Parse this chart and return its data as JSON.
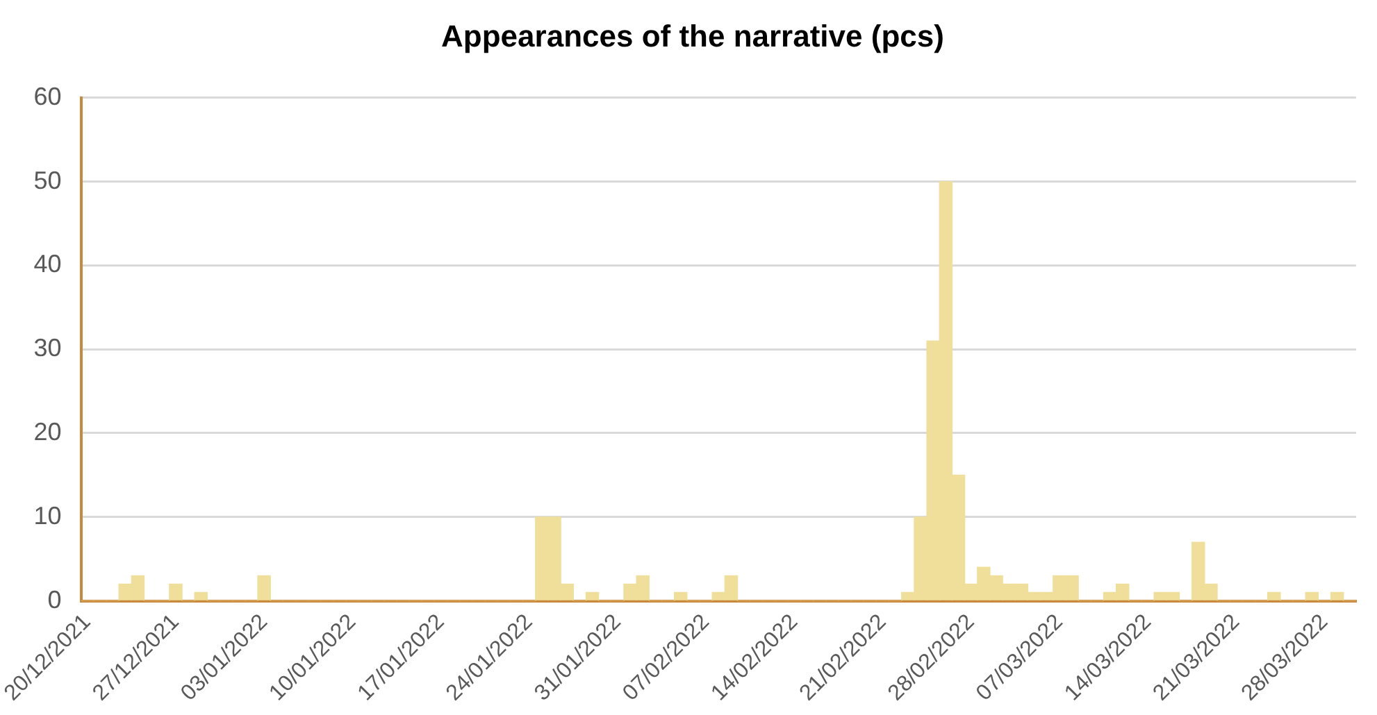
{
  "chart_data": {
    "type": "bar",
    "title": "Appearances of the narrative (pcs)",
    "categories": [
      "20/12/2021",
      null,
      null,
      null,
      null,
      null,
      null,
      "27/12/2021",
      null,
      null,
      null,
      null,
      null,
      null,
      "03/01/2022",
      null,
      null,
      null,
      null,
      null,
      null,
      "10/01/2022",
      null,
      null,
      null,
      null,
      null,
      null,
      "17/01/2022",
      null,
      null,
      null,
      null,
      null,
      null,
      "24/01/2022",
      null,
      null,
      null,
      null,
      null,
      null,
      "31/01/2022",
      null,
      null,
      null,
      null,
      null,
      null,
      "07/02/2022",
      null,
      null,
      null,
      null,
      null,
      null,
      "14/02/2022",
      null,
      null,
      null,
      null,
      null,
      null,
      "21/02/2022",
      null,
      null,
      null,
      null,
      null,
      null,
      "28/02/2022",
      null,
      null,
      null,
      null,
      null,
      null,
      "07/03/2022",
      null,
      null,
      null,
      null,
      null,
      null,
      "14/03/2022",
      null,
      null,
      null,
      null,
      null,
      null,
      "21/03/2022",
      null,
      null,
      null,
      null,
      null,
      null,
      "28/03/2022",
      null,
      null
    ],
    "values": [
      0,
      0,
      0,
      2,
      3,
      0,
      0,
      2,
      0,
      1,
      0,
      0,
      0,
      0,
      3,
      0,
      0,
      0,
      0,
      0,
      0,
      0,
      0,
      0,
      0,
      0,
      0,
      0,
      0,
      0,
      0,
      0,
      0,
      0,
      0,
      0,
      10,
      10,
      2,
      0,
      1,
      0,
      0,
      2,
      3,
      0,
      0,
      1,
      0,
      0,
      1,
      3,
      0,
      0,
      0,
      0,
      0,
      0,
      0,
      0,
      0,
      0,
      0,
      0,
      0,
      1,
      10,
      31,
      50,
      15,
      2,
      4,
      3,
      2,
      2,
      1,
      1,
      3,
      3,
      0,
      0,
      1,
      2,
      0,
      0,
      1,
      1,
      0,
      7,
      2,
      0,
      0,
      0,
      0,
      1,
      0,
      0,
      1,
      0,
      1,
      0
    ],
    "color": "#efdf9a",
    "ylim": [
      0,
      60
    ],
    "yticks": [
      0,
      10,
      20,
      30,
      40,
      50,
      60
    ],
    "grid": "y"
  }
}
